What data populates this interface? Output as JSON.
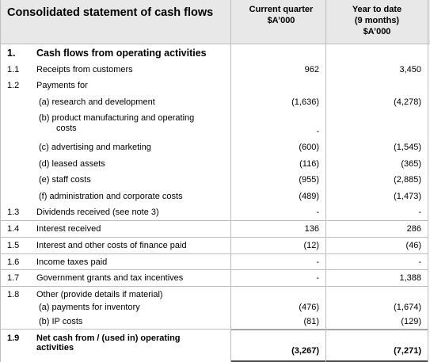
{
  "header": {
    "title": "Consolidated statement of cash flows",
    "col1": [
      "Current quarter",
      "$A’000"
    ],
    "col2": [
      "Year to date",
      "(9 months)",
      "$A’000"
    ]
  },
  "section": {
    "num": "1.",
    "label": "Cash flows from operating activities"
  },
  "rows": [
    {
      "num": "1.1",
      "label": "Receipts from customers",
      "current": "962",
      "ytd": "3,450"
    },
    {
      "num": "1.2",
      "label": "Payments for",
      "current": "",
      "ytd": ""
    },
    {
      "num": "",
      "label": "(a)  research and development",
      "current": "(1,636)",
      "ytd": "(4,278)"
    },
    {
      "num": "",
      "label": "(b)  product manufacturing and operating",
      "label2": "costs",
      "current": "-",
      "ytd": ""
    },
    {
      "num": "",
      "label": "(c)  advertising and marketing",
      "current": "(600)",
      "ytd": "(1,545)"
    },
    {
      "num": "",
      "label": "(d)  leased assets",
      "current": "(116)",
      "ytd": "(365)"
    },
    {
      "num": "",
      "label": "(e)  staff costs",
      "current": "(955)",
      "ytd": "(2,885)"
    },
    {
      "num": "",
      "label": "(f)   administration and corporate costs",
      "current": "(489)",
      "ytd": "(1,473)"
    },
    {
      "num": "1.3",
      "label": "Dividends received (see note 3)",
      "current": "-",
      "ytd": "-"
    },
    {
      "num": "1.4",
      "label": "Interest received",
      "current": "136",
      "ytd": "286"
    },
    {
      "num": "1.5",
      "label": "Interest and other costs of finance paid",
      "current": "(12)",
      "ytd": "(46)"
    },
    {
      "num": "1.6",
      "label": "Income taxes paid",
      "current": "-",
      "ytd": "-"
    },
    {
      "num": "1.7",
      "label": "Government grants and tax incentives",
      "current": "-",
      "ytd": "1,388"
    },
    {
      "num": "1.8",
      "label": "Other (provide details if material)",
      "current": "",
      "ytd": ""
    },
    {
      "num": "",
      "label": "(a)     payments for inventory",
      "current": "(476)",
      "ytd": "(1,674)"
    },
    {
      "num": "",
      "label": "(b)     IP costs",
      "current": "(81)",
      "ytd": "(129)"
    }
  ],
  "total": {
    "num": "1.9",
    "label": "Net cash from / (used in) operating",
    "label2": "activities",
    "current": "(3,267)",
    "ytd": "(7,271)"
  }
}
